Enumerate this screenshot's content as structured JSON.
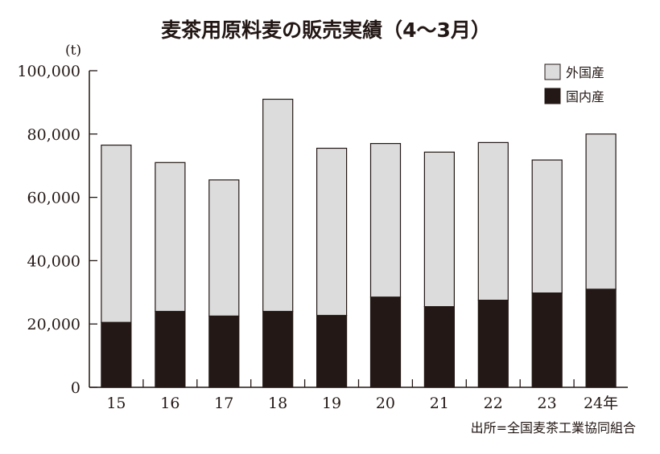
{
  "chart_data": {
    "type": "bar",
    "stacked": true,
    "title": "麦茶用原料麦の販売実績（4～3月）",
    "unit_label": "(t)",
    "source": "出所=全国麦茶工業協同組合",
    "categories": [
      "15",
      "16",
      "17",
      "18",
      "19",
      "20",
      "21",
      "22",
      "23",
      "24年"
    ],
    "ylim": [
      0,
      100000
    ],
    "yticks": [
      0,
      20000,
      40000,
      60000,
      80000,
      100000
    ],
    "ytick_labels": [
      "0",
      "20,000",
      "40,000",
      "60,000",
      "80,000",
      "100,000"
    ],
    "legend_position": "top-right",
    "grid": false,
    "series": [
      {
        "name": "国内産",
        "color": "#231815",
        "values": [
          20500,
          24000,
          22500,
          24000,
          22700,
          28500,
          25500,
          27500,
          29800,
          31000
        ]
      },
      {
        "name": "外国産",
        "color": "#dcdcdc",
        "values": [
          56000,
          47000,
          43000,
          67000,
          52800,
          48500,
          48800,
          49800,
          42000,
          49000
        ]
      }
    ],
    "legend": [
      {
        "name": "外国産",
        "color": "#dcdcdc"
      },
      {
        "name": "国内産",
        "color": "#231815"
      }
    ]
  }
}
